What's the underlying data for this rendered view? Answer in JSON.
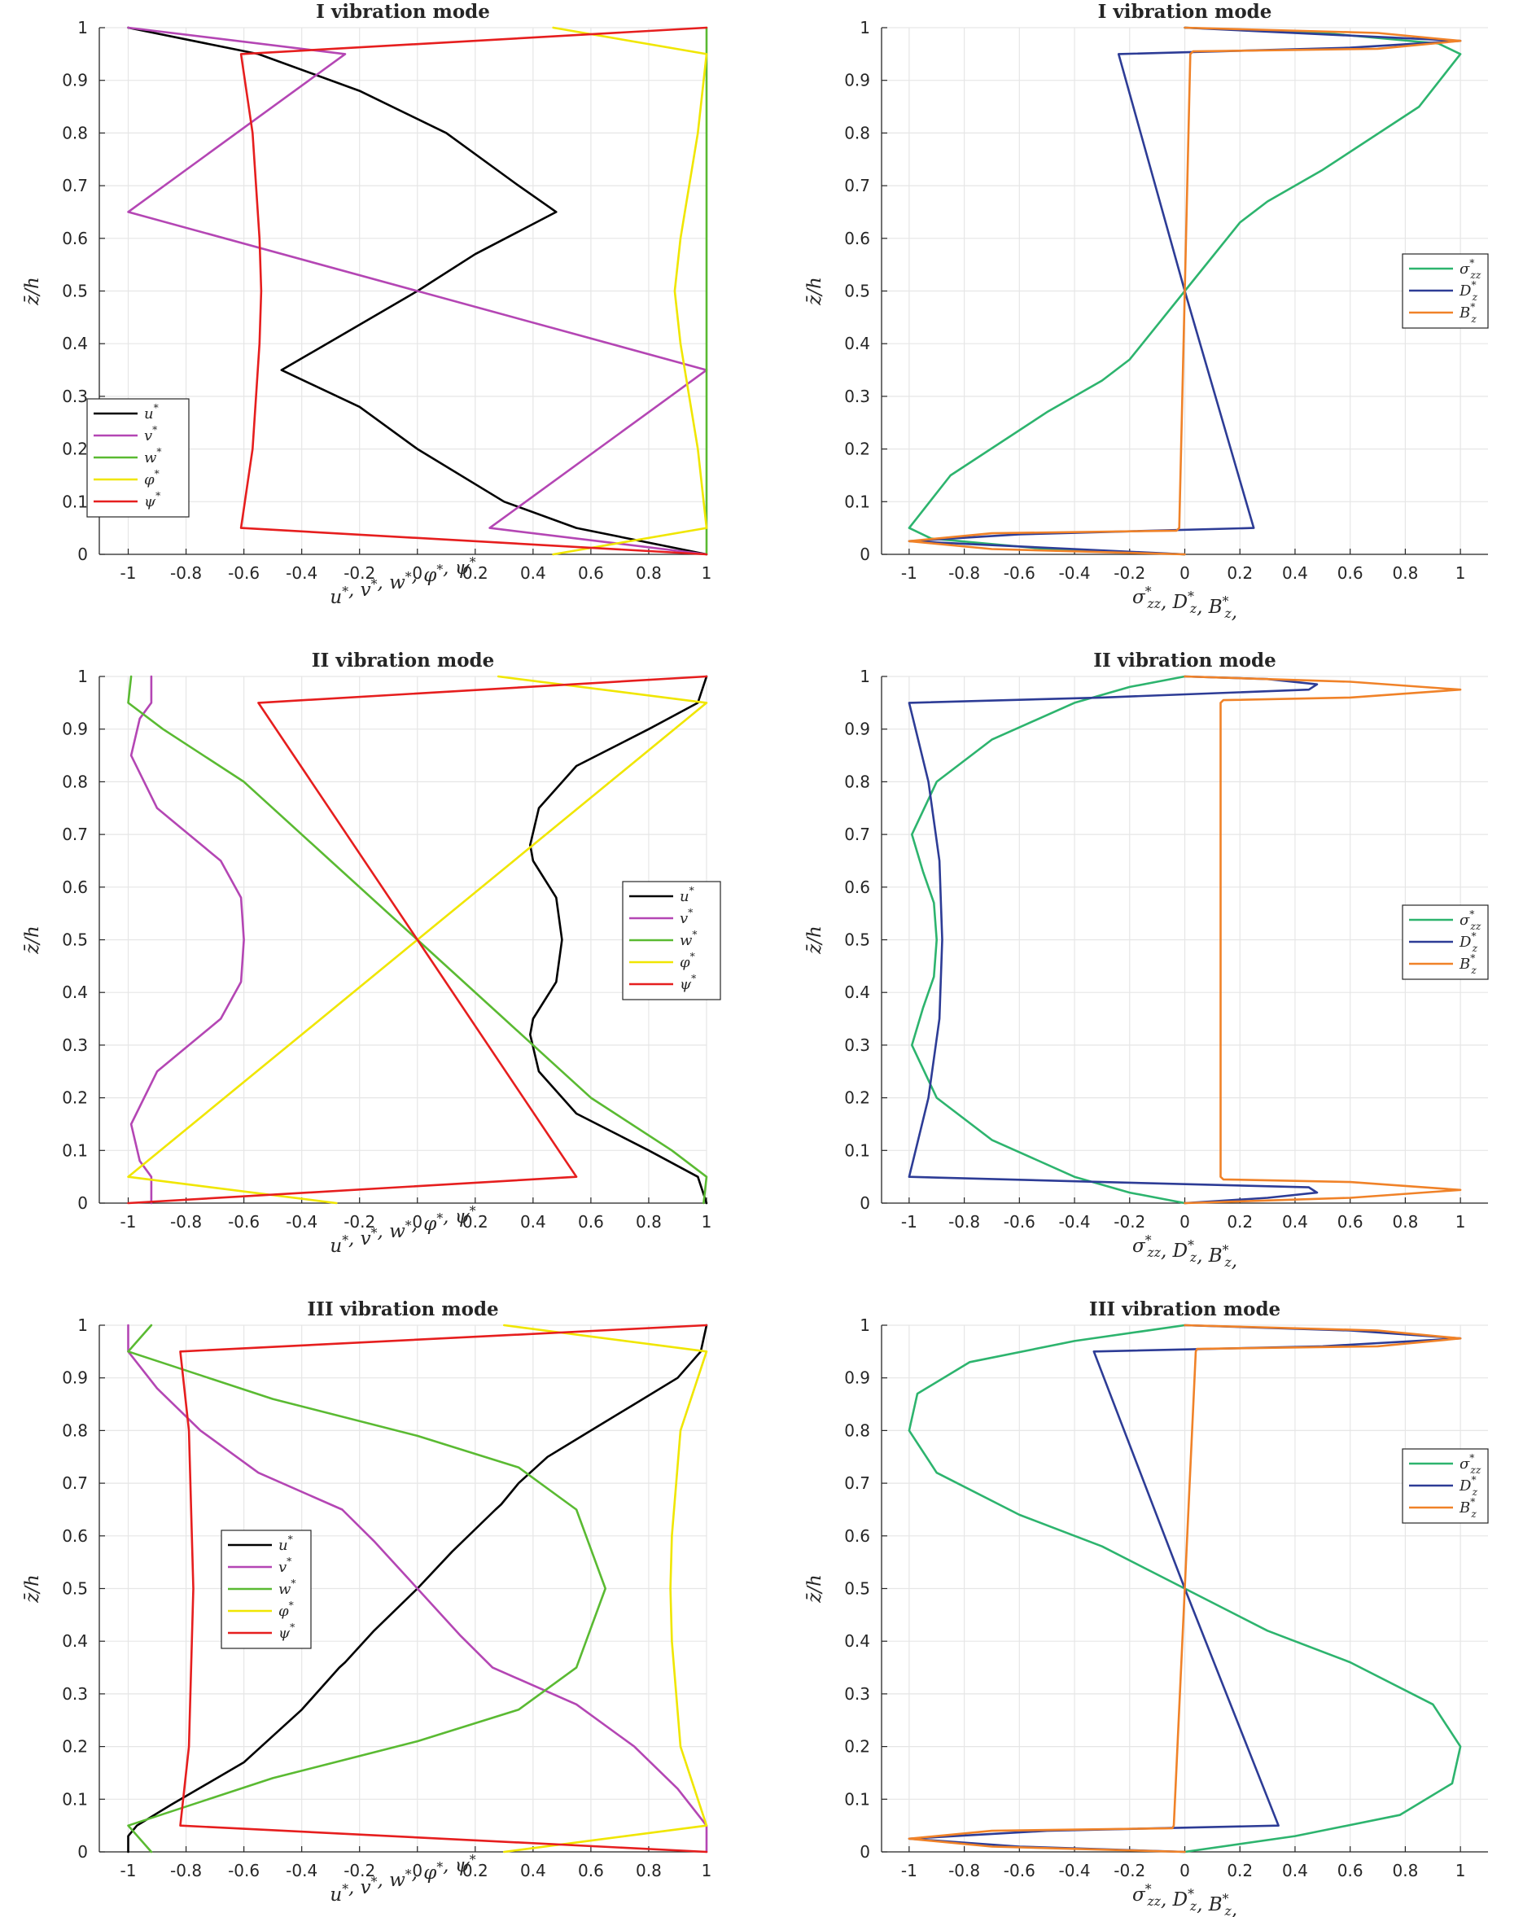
{
  "colors": {
    "black": "#000000",
    "magenta": "#b446b4",
    "green": "#5aba32",
    "yellow": "#f0e600",
    "red": "#e61e1e",
    "teal": "#2db46e",
    "navy": "#2d3c96",
    "orange": "#f08228",
    "grid": "#e6e6e6",
    "axis": "#262626"
  },
  "chart_data": [
    {
      "type": "line",
      "title": "I vibration mode",
      "xlabel": "u*, v*, w*, φ*, ψ*",
      "ylabel": "z̄/h",
      "xlim": [
        -1.1,
        1
      ],
      "ylim": [
        0,
        1
      ],
      "xticks": [
        "-1",
        "-0.8",
        "-0.6",
        "-0.4",
        "-0.2",
        "0",
        "0.2",
        "0.4",
        "0.6",
        "0.8",
        "1"
      ],
      "yticks": [
        "0",
        "0.1",
        "0.2",
        "0.3",
        "0.4",
        "0.5",
        "0.6",
        "0.7",
        "0.8",
        "0.9",
        "1"
      ],
      "legend": {
        "location": "bottom-left",
        "entries": [
          "u*",
          "v*",
          "w*",
          "φ*",
          "ψ*"
        ]
      },
      "series": [
        {
          "name": "u*",
          "color": "black",
          "x": [
            -1,
            -0.55,
            -0.2,
            0.1,
            0.35,
            0.48,
            0.2,
            0,
            -0.25,
            -0.47,
            -0.2,
            0,
            0.3,
            0.55,
            1
          ],
          "y": [
            1,
            0.95,
            0.88,
            0.8,
            0.7,
            0.65,
            0.57,
            0.5,
            0.42,
            0.35,
            0.28,
            0.2,
            0.1,
            0.05,
            0
          ]
        },
        {
          "name": "v*",
          "color": "magenta",
          "x": [
            -1,
            -0.25,
            -1,
            1,
            0.25,
            1
          ],
          "y": [
            1,
            0.95,
            0.65,
            0.35,
            0.05,
            0
          ]
        },
        {
          "name": "w*",
          "color": "green",
          "x": [
            1,
            1,
            1,
            1,
            1
          ],
          "y": [
            0,
            0.25,
            0.5,
            0.75,
            1
          ]
        },
        {
          "name": "φ*",
          "color": "yellow",
          "x": [
            0.47,
            1,
            0.97,
            0.91,
            0.89,
            0.91,
            0.97,
            1,
            0.47
          ],
          "y": [
            1,
            0.95,
            0.8,
            0.6,
            0.5,
            0.4,
            0.2,
            0.05,
            0
          ]
        },
        {
          "name": "ψ*",
          "color": "red",
          "x": [
            1,
            -0.61,
            -0.57,
            -0.546,
            -0.54,
            -0.546,
            -0.57,
            -0.61,
            1
          ],
          "y": [
            1,
            0.95,
            0.8,
            0.6,
            0.5,
            0.4,
            0.2,
            0.05,
            0
          ]
        }
      ]
    },
    {
      "type": "line",
      "title": "I vibration mode",
      "xlabel": "σ*zz, D*z, B*z,",
      "ylabel": "z̄/h",
      "xlim": [
        -1.1,
        1.1
      ],
      "ylim": [
        0,
        1
      ],
      "xticks": [
        "-1",
        "-0.8",
        "-0.6",
        "-0.4",
        "-0.2",
        "0",
        "0.2",
        "0.4",
        "0.6",
        "0.8",
        "1"
      ],
      "yticks": [
        "0",
        "0.1",
        "0.2",
        "0.3",
        "0.4",
        "0.5",
        "0.6",
        "0.7",
        "0.8",
        "0.9",
        "1"
      ],
      "legend": {
        "location": "right",
        "entries": [
          "σ*zz",
          "D*z",
          "B*z"
        ]
      },
      "series": [
        {
          "name": "σ*zz",
          "color": "teal",
          "x": [
            0,
            0.5,
            0.92,
            1,
            0.85,
            0.5,
            0.3,
            0.2,
            0,
            -0.2,
            -0.3,
            -0.5,
            -0.85,
            -1,
            -0.92,
            -0.5,
            0
          ],
          "y": [
            1,
            0.99,
            0.97,
            0.95,
            0.85,
            0.73,
            0.67,
            0.63,
            0.5,
            0.37,
            0.33,
            0.27,
            0.15,
            0.05,
            0.03,
            0.01,
            0
          ]
        },
        {
          "name": "D*z",
          "color": "navy",
          "x": [
            0,
            1,
            0.6,
            -0.24,
            0,
            0.25,
            -0.6,
            -1,
            0
          ],
          "y": [
            1,
            0.975,
            0.962,
            0.95,
            0.5,
            0.05,
            0.038,
            0.025,
            0
          ]
        },
        {
          "name": "B*z",
          "color": "orange",
          "x": [
            0,
            0.7,
            1,
            0.7,
            0.03,
            0.02,
            0,
            -0.02,
            -0.03,
            -0.7,
            -1,
            -0.7,
            0
          ],
          "y": [
            1,
            0.99,
            0.975,
            0.96,
            0.955,
            0.95,
            0.5,
            0.05,
            0.045,
            0.04,
            0.025,
            0.01,
            0
          ]
        }
      ]
    },
    {
      "type": "line",
      "title": "II vibration mode",
      "xlabel": "u*, v*, w*, φ*, ψ*",
      "ylabel": "z̄/h",
      "xlim": [
        -1.1,
        1
      ],
      "ylim": [
        0,
        1
      ],
      "xticks": [
        "-1",
        "-0.8",
        "-0.6",
        "-0.4",
        "-0.2",
        "0",
        "0.2",
        "0.4",
        "0.6",
        "0.8",
        "1"
      ],
      "yticks": [
        "0",
        "0.1",
        "0.2",
        "0.3",
        "0.4",
        "0.5",
        "0.6",
        "0.7",
        "0.8",
        "0.9",
        "1"
      ],
      "legend": {
        "location": "right",
        "entries": [
          "u*",
          "v*",
          "w*",
          "φ*",
          "ψ*"
        ]
      },
      "series": [
        {
          "name": "u*",
          "color": "black",
          "x": [
            1,
            0.97,
            0.8,
            0.55,
            0.42,
            0.39,
            0.4,
            0.48,
            0.5,
            0.48,
            0.4,
            0.39,
            0.42,
            0.55,
            0.8,
            0.97,
            1
          ],
          "y": [
            1,
            0.95,
            0.9,
            0.83,
            0.75,
            0.68,
            0.65,
            0.58,
            0.5,
            0.42,
            0.35,
            0.32,
            0.25,
            0.17,
            0.1,
            0.05,
            0
          ]
        },
        {
          "name": "v*",
          "color": "magenta",
          "x": [
            -0.92,
            -0.92,
            -0.96,
            -0.99,
            -0.9,
            -0.68,
            -0.61,
            -0.6,
            -0.61,
            -0.68,
            -0.9,
            -0.99,
            -0.96,
            -0.92,
            -0.92
          ],
          "y": [
            1,
            0.95,
            0.92,
            0.85,
            0.75,
            0.65,
            0.58,
            0.5,
            0.42,
            0.35,
            0.25,
            0.15,
            0.08,
            0.05,
            0
          ]
        },
        {
          "name": "w*",
          "color": "green",
          "x": [
            -0.99,
            -1,
            -0.88,
            -0.6,
            -0.3,
            0,
            0.3,
            0.6,
            0.88,
            1,
            0.99
          ],
          "y": [
            1,
            0.95,
            0.9,
            0.8,
            0.65,
            0.5,
            0.35,
            0.2,
            0.1,
            0.05,
            0
          ]
        },
        {
          "name": "φ*",
          "color": "yellow",
          "x": [
            0.28,
            1,
            0,
            -1,
            -0.28
          ],
          "y": [
            1,
            0.95,
            0.5,
            0.05,
            0
          ]
        },
        {
          "name": "ψ*",
          "color": "red",
          "x": [
            1,
            -0.55,
            0,
            0.55,
            -1
          ],
          "y": [
            1,
            0.95,
            0.5,
            0.05,
            0
          ]
        }
      ]
    },
    {
      "type": "line",
      "title": "II vibration mode",
      "xlabel": "σ*zz, D*z, B*z,",
      "ylabel": "z̄/h",
      "xlim": [
        -1.1,
        1.1
      ],
      "ylim": [
        0,
        1
      ],
      "xticks": [
        "-1",
        "-0.8",
        "-0.6",
        "-0.4",
        "-0.2",
        "0",
        "0.2",
        "0.4",
        "0.6",
        "0.8",
        "1"
      ],
      "yticks": [
        "0",
        "0.1",
        "0.2",
        "0.3",
        "0.4",
        "0.5",
        "0.6",
        "0.7",
        "0.8",
        "0.9",
        "1"
      ],
      "legend": {
        "location": "right",
        "entries": [
          "σ*zz",
          "D*z",
          "B*z"
        ]
      },
      "series": [
        {
          "name": "σ*zz",
          "color": "teal",
          "x": [
            0,
            -0.2,
            -0.4,
            -0.7,
            -0.9,
            -0.99,
            -0.95,
            -0.91,
            -0.9,
            -0.91,
            -0.95,
            -0.99,
            -0.9,
            -0.7,
            -0.4,
            -0.2,
            0
          ],
          "y": [
            1,
            0.98,
            0.95,
            0.88,
            0.8,
            0.7,
            0.63,
            0.57,
            0.5,
            0.43,
            0.37,
            0.3,
            0.2,
            0.12,
            0.05,
            0.02,
            0
          ]
        },
        {
          "name": "D*z",
          "color": "navy",
          "x": [
            0,
            0.3,
            0.48,
            0.45,
            -0.3,
            -1,
            -0.93,
            -0.89,
            -0.88,
            -0.89,
            -0.93,
            -1,
            -0.3,
            0.45,
            0.48,
            0.3,
            0
          ],
          "y": [
            1,
            0.995,
            0.985,
            0.975,
            0.96,
            0.95,
            0.8,
            0.65,
            0.5,
            0.35,
            0.2,
            0.05,
            0.04,
            0.03,
            0.02,
            0.01,
            0
          ]
        },
        {
          "name": "B*z",
          "color": "orange",
          "x": [
            0,
            0.6,
            1,
            0.6,
            0.14,
            0.13,
            0.13,
            0.13,
            0.14,
            0.6,
            1,
            0.6,
            0
          ],
          "y": [
            1,
            0.99,
            0.975,
            0.96,
            0.955,
            0.95,
            0.5,
            0.05,
            0.045,
            0.04,
            0.025,
            0.01,
            0
          ]
        }
      ]
    },
    {
      "type": "line",
      "title": "III vibration mode",
      "xlabel": "u*, v*, w*, φ*, ψ*",
      "ylabel": "z̄/h",
      "xlim": [
        -1.1,
        1
      ],
      "ylim": [
        0,
        1
      ],
      "xticks": [
        "-1",
        "-0.8",
        "-0.6",
        "-0.4",
        "-0.2",
        "0",
        "0.2",
        "0.4",
        "0.6",
        "0.8",
        "1"
      ],
      "yticks": [
        "0",
        "0.1",
        "0.2",
        "0.3",
        "0.4",
        "0.5",
        "0.6",
        "0.7",
        "0.8",
        "0.9",
        "1"
      ],
      "legend": {
        "location": "center-left",
        "entries": [
          "u*",
          "v*",
          "w*",
          "φ*",
          "ψ*"
        ]
      },
      "series": [
        {
          "name": "u*",
          "color": "black",
          "x": [
            1,
            0.98,
            0.9,
            0.75,
            0.6,
            0.45,
            0.35,
            0.29,
            0.27,
            0.12,
            0,
            -0.15,
            -0.25,
            -0.27,
            -0.4,
            -0.6,
            -0.85,
            -0.97,
            -1,
            -1
          ],
          "y": [
            1,
            0.95,
            0.9,
            0.85,
            0.8,
            0.75,
            0.7,
            0.66,
            0.65,
            0.57,
            0.5,
            0.42,
            0.36,
            0.35,
            0.27,
            0.17,
            0.09,
            0.05,
            0.03,
            0
          ]
        },
        {
          "name": "v*",
          "color": "magenta",
          "x": [
            -1,
            -1,
            -0.9,
            -0.75,
            -0.55,
            -0.26,
            -0.15,
            0,
            0.15,
            0.26,
            0.55,
            0.75,
            0.9,
            1,
            1
          ],
          "y": [
            1,
            0.95,
            0.88,
            0.8,
            0.72,
            0.65,
            0.59,
            0.5,
            0.41,
            0.35,
            0.28,
            0.2,
            0.12,
            0.05,
            0
          ]
        },
        {
          "name": "w*",
          "color": "green",
          "x": [
            -0.92,
            -1,
            -0.5,
            0,
            0.35,
            0.55,
            0.65,
            0.55,
            0.35,
            0,
            -0.5,
            -1,
            -0.92
          ],
          "y": [
            1,
            0.95,
            0.86,
            0.79,
            0.73,
            0.65,
            0.5,
            0.35,
            0.27,
            0.21,
            0.14,
            0.05,
            0
          ]
        },
        {
          "name": "φ*",
          "color": "yellow",
          "x": [
            0.3,
            1,
            0.91,
            0.88,
            0.875,
            0.88,
            0.91,
            1,
            0.3
          ],
          "y": [
            1,
            0.95,
            0.8,
            0.6,
            0.5,
            0.4,
            0.2,
            0.05,
            0
          ]
        },
        {
          "name": "ψ*",
          "color": "red",
          "x": [
            1,
            -0.82,
            -0.79,
            -0.78,
            -0.775,
            -0.78,
            -0.79,
            -0.82,
            1
          ],
          "y": [
            1,
            0.95,
            0.8,
            0.6,
            0.5,
            0.4,
            0.2,
            0.05,
            0
          ]
        }
      ]
    },
    {
      "type": "line",
      "title": "III vibration mode",
      "xlabel": "σ*zz, D*z, B*z,",
      "ylabel": "z̄/h",
      "xlim": [
        -1.1,
        1.1
      ],
      "ylim": [
        0,
        1
      ],
      "xticks": [
        "-1",
        "-0.8",
        "-0.6",
        "-0.4",
        "-0.2",
        "0",
        "0.2",
        "0.4",
        "0.6",
        "0.8",
        "1"
      ],
      "yticks": [
        "0",
        "0.1",
        "0.2",
        "0.3",
        "0.4",
        "0.5",
        "0.6",
        "0.7",
        "0.8",
        "0.9",
        "1"
      ],
      "legend": {
        "location": "right",
        "entries": [
          "σ*zz",
          "D*z",
          "B*z"
        ]
      },
      "series": [
        {
          "name": "σ*zz",
          "color": "teal",
          "x": [
            0,
            -0.4,
            -0.78,
            -0.97,
            -1,
            -0.9,
            -0.6,
            -0.3,
            0,
            0.3,
            0.6,
            0.9,
            1,
            0.97,
            0.78,
            0.4,
            0
          ],
          "y": [
            1,
            0.97,
            0.93,
            0.87,
            0.8,
            0.72,
            0.64,
            0.58,
            0.5,
            0.42,
            0.36,
            0.28,
            0.2,
            0.13,
            0.07,
            0.03,
            0
          ]
        },
        {
          "name": "D*z",
          "color": "navy",
          "x": [
            0,
            0.6,
            1,
            0.5,
            -0.33,
            0,
            0.34,
            -0.5,
            -1,
            -0.6,
            0
          ],
          "y": [
            1,
            0.99,
            0.975,
            0.96,
            0.95,
            0.5,
            0.05,
            0.04,
            0.025,
            0.01,
            0
          ]
        },
        {
          "name": "B*z",
          "color": "orange",
          "x": [
            0,
            0.7,
            1,
            0.7,
            0.045,
            0.04,
            0,
            -0.04,
            -0.045,
            -0.7,
            -1,
            -0.7,
            0
          ],
          "y": [
            1,
            0.99,
            0.975,
            0.96,
            0.955,
            0.95,
            0.5,
            0.05,
            0.045,
            0.04,
            0.025,
            0.01,
            0
          ]
        }
      ]
    }
  ]
}
